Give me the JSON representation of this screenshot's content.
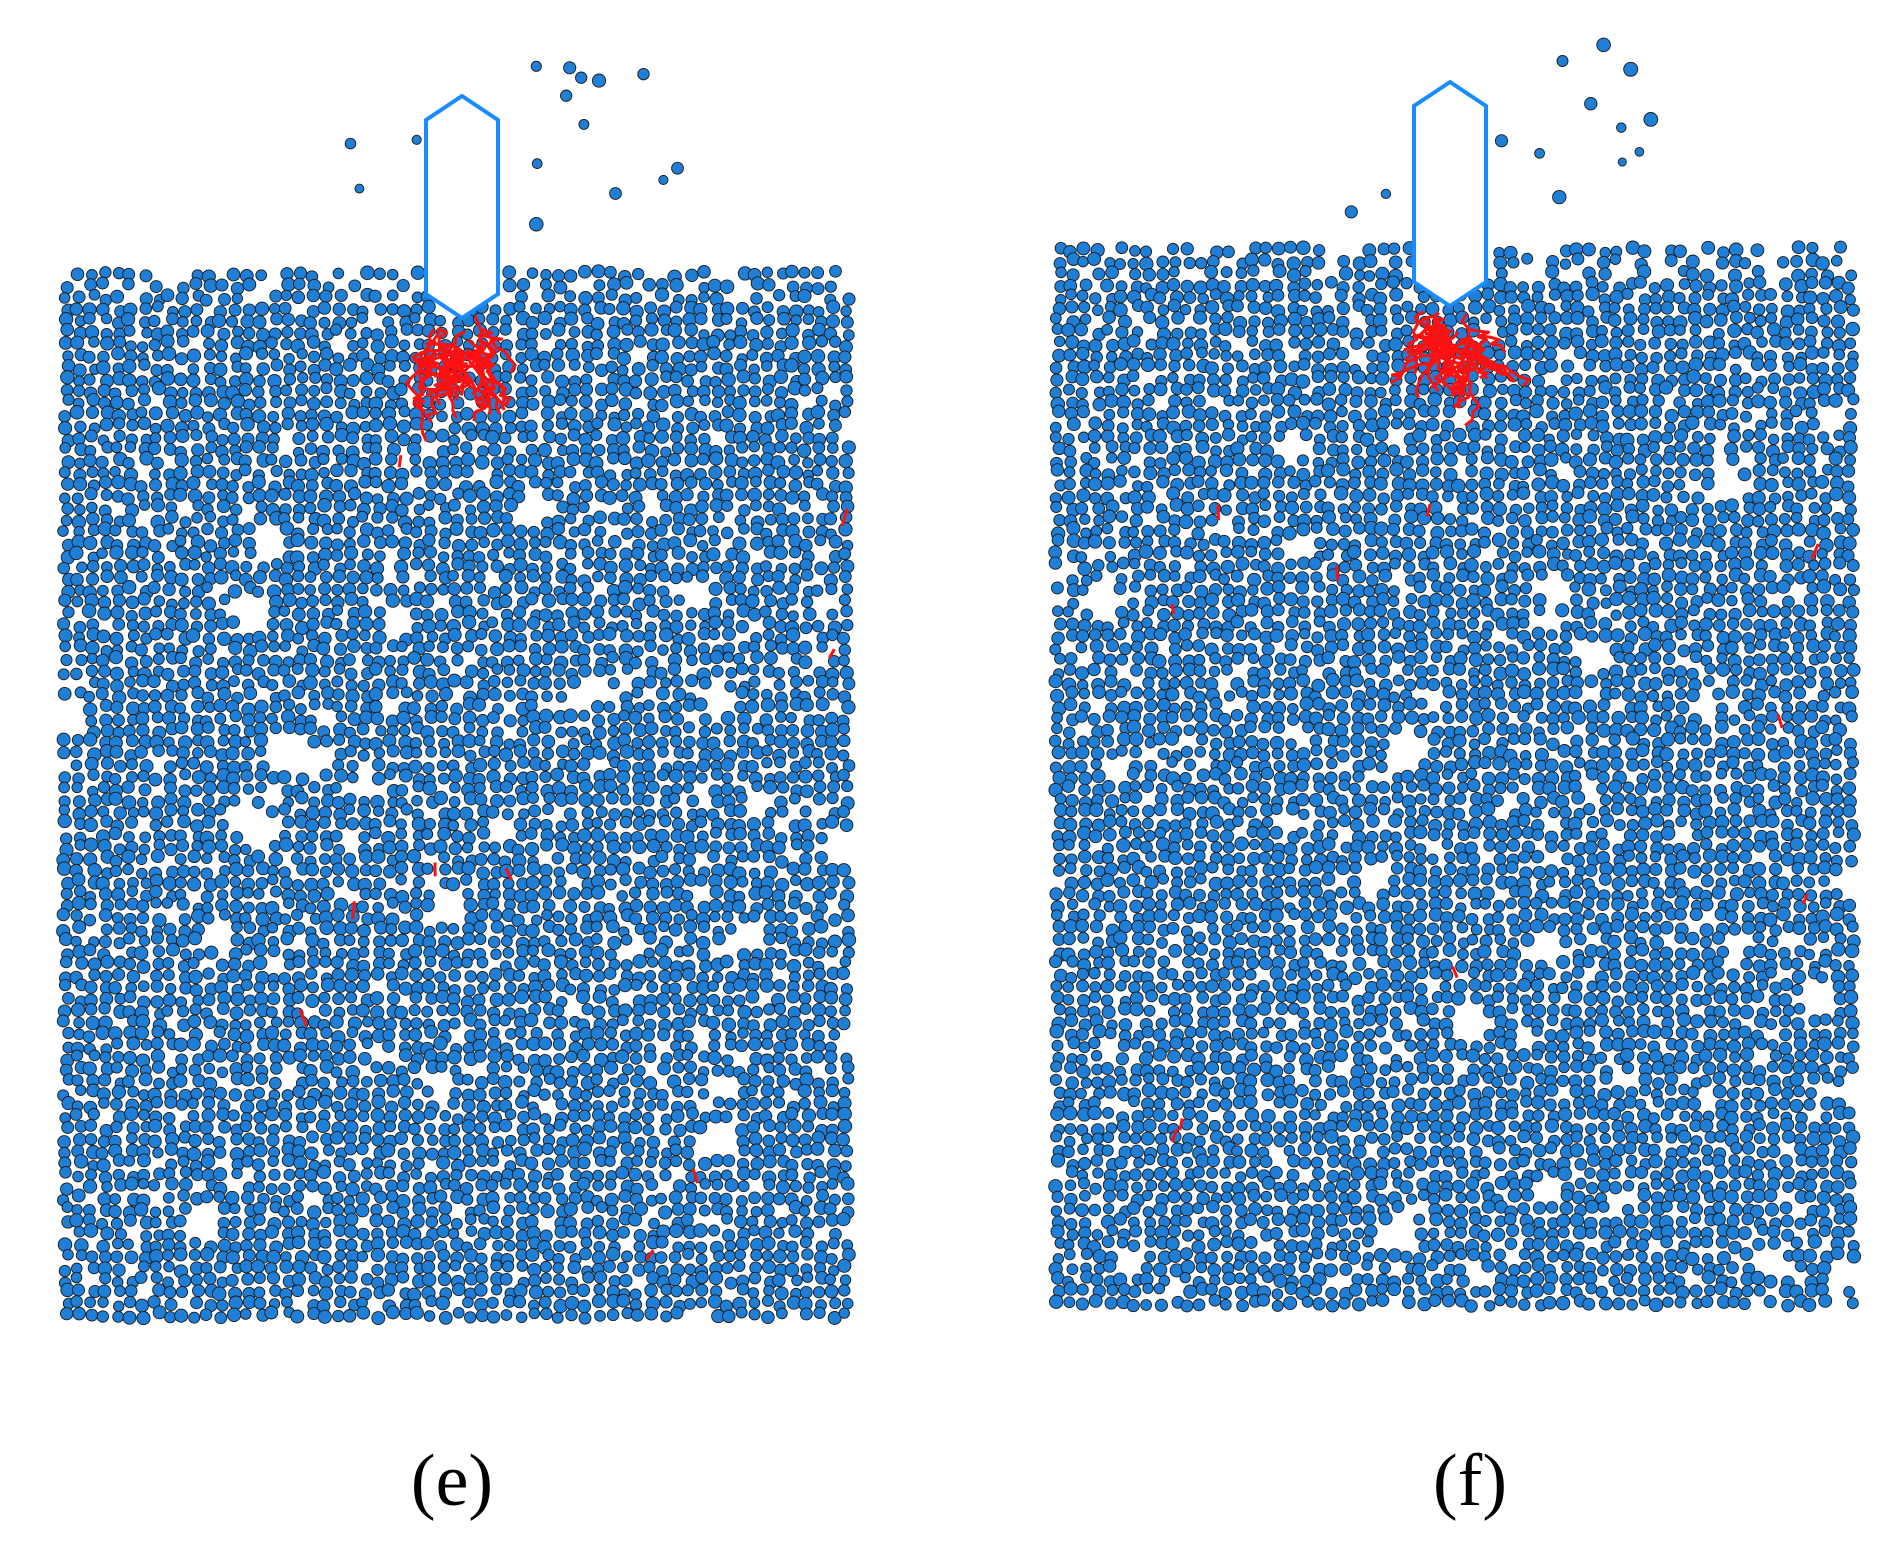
{
  "panels": [
    {
      "label": "(e)"
    },
    {
      "label": "(f)"
    }
  ]
}
